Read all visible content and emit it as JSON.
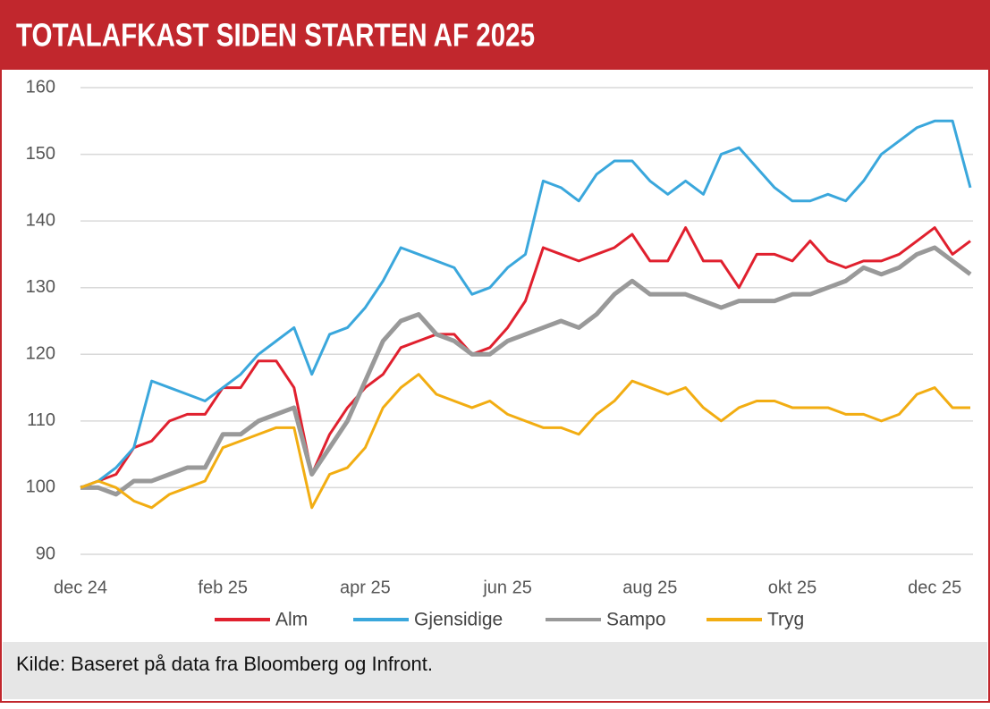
{
  "chart_data": {
    "type": "line",
    "title": "TOTALAFKAST SIDEN STARTEN AF 2025",
    "source": "Kilde:  Baseret på data fra Bloomberg og Infront.",
    "categories": [
      "dec 24",
      null,
      null,
      null,
      null,
      null,
      null,
      null,
      "feb 25",
      null,
      null,
      null,
      null,
      null,
      null,
      null,
      "apr 25",
      null,
      null,
      null,
      null,
      null,
      null,
      null,
      "jun 25",
      null,
      null,
      null,
      null,
      null,
      null,
      null,
      "aug 25",
      null,
      null,
      null,
      null,
      null,
      null,
      null,
      "okt 25",
      null,
      null,
      null,
      null,
      null,
      null,
      null,
      "dec 25",
      null,
      null
    ],
    "series": [
      {
        "name": "Alm",
        "color": "#e0202e",
        "values": [
          100,
          101,
          102,
          106,
          107,
          110,
          111,
          111,
          115,
          115,
          119,
          119,
          115,
          102,
          108,
          112,
          115,
          117,
          121,
          122,
          123,
          123,
          120,
          121,
          124,
          128,
          136,
          135,
          134,
          135,
          136,
          138,
          134,
          134,
          139,
          134,
          134,
          130,
          135,
          135,
          134,
          137,
          134,
          133,
          134,
          134,
          135,
          137,
          139,
          135,
          137
        ]
      },
      {
        "name": "Gjensidige",
        "color": "#3aa7dc",
        "values": [
          100,
          101,
          103,
          106,
          116,
          115,
          114,
          113,
          115,
          117,
          120,
          122,
          124,
          117,
          123,
          124,
          127,
          131,
          136,
          135,
          134,
          133,
          129,
          130,
          133,
          135,
          146,
          145,
          143,
          147,
          149,
          149,
          146,
          144,
          146,
          144,
          150,
          151,
          148,
          145,
          143,
          143,
          144,
          143,
          146,
          150,
          152,
          154,
          155,
          155,
          145
        ]
      },
      {
        "name": "Sampo",
        "color": "#999999",
        "values": [
          100,
          100,
          99,
          101,
          101,
          102,
          103,
          103,
          108,
          108,
          110,
          111,
          112,
          102,
          106,
          110,
          116,
          122,
          125,
          126,
          123,
          122,
          120,
          120,
          122,
          123,
          124,
          125,
          124,
          126,
          129,
          131,
          129,
          129,
          129,
          128,
          127,
          128,
          128,
          128,
          129,
          129,
          130,
          131,
          133,
          132,
          133,
          135,
          136,
          134,
          132
        ]
      },
      {
        "name": "Tryg",
        "color": "#f2ad12",
        "values": [
          100,
          101,
          100,
          98,
          97,
          99,
          100,
          101,
          106,
          107,
          108,
          109,
          109,
          97,
          102,
          103,
          106,
          112,
          115,
          117,
          114,
          113,
          112,
          113,
          111,
          110,
          109,
          109,
          108,
          111,
          113,
          116,
          115,
          114,
          115,
          112,
          110,
          112,
          113,
          113,
          112,
          112,
          112,
          111,
          111,
          110,
          111,
          114,
          115,
          112,
          112
        ]
      }
    ],
    "ylim": [
      90,
      160
    ],
    "yticks": [
      90,
      100,
      110,
      120,
      130,
      140,
      150,
      160
    ],
    "grid": true,
    "legend": "bottom"
  }
}
